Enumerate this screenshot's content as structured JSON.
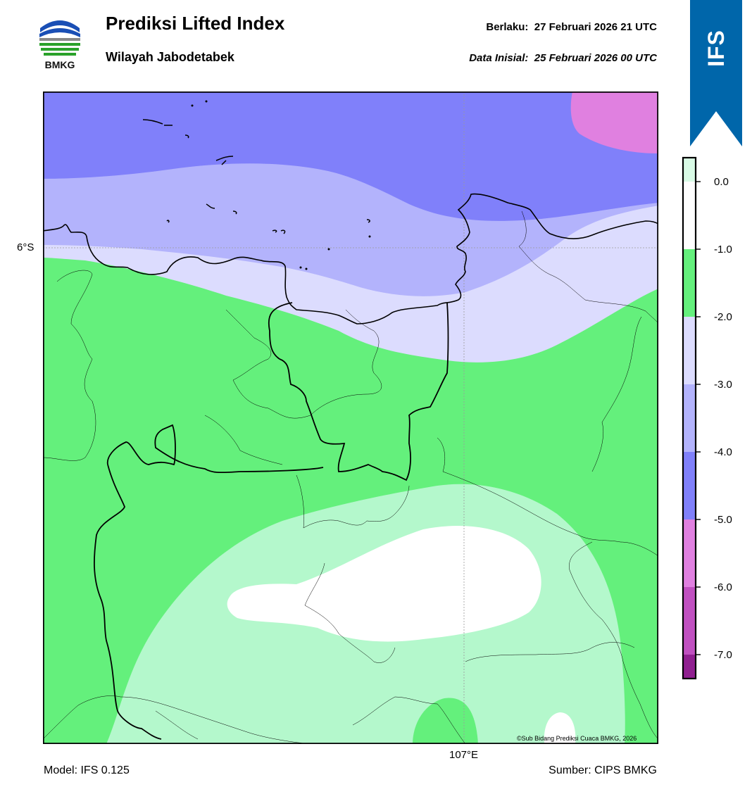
{
  "header": {
    "logo_text": "BMKG",
    "title": "Prediksi Lifted Index",
    "subtitle": "Wilayah Jabodetabek",
    "valid_label": "Berlaku:",
    "valid_value": "27 Februari 2026 21 UTC",
    "init_label": "Data Inisial:",
    "init_value": "25 Februari 2026 00 UTC"
  },
  "ribbon": {
    "label": "IFS",
    "color": "#0066aa"
  },
  "map": {
    "lat_label": "6°S",
    "lon_label": "107°E",
    "copyright": "©Sub Bidang Prediksi Cuaca BMKG, 2026"
  },
  "footer": {
    "model": "Model: IFS 0.125",
    "source": "Sumber: CIPS BMKG"
  },
  "colorbar": {
    "labels": [
      "0.0",
      "-1.0",
      "-2.0",
      "-3.0",
      "-4.0",
      "-5.0",
      "-6.0",
      "-7.0"
    ],
    "colors": {
      "above_0": "#d9fbe6",
      "0_to_-1": "#ffffff",
      "-1_to_-2": "#64f07c",
      "-2_to_-3": "#dcdcfe",
      "-3_to_-4": "#b3b3fc",
      "-4_to_-5": "#8080fa",
      "-5_to_-6": "#e080e0",
      "-6_to_-7": "#c050c0",
      "below_-7": "#902090"
    }
  },
  "field_colors": {
    "white": "#ffffff",
    "light_green": "#b4f8cc",
    "green": "#64f07c",
    "lavender_light": "#dcdcfe",
    "lavender": "#b3b3fc",
    "blue": "#8080fa",
    "pink": "#e080e0"
  }
}
